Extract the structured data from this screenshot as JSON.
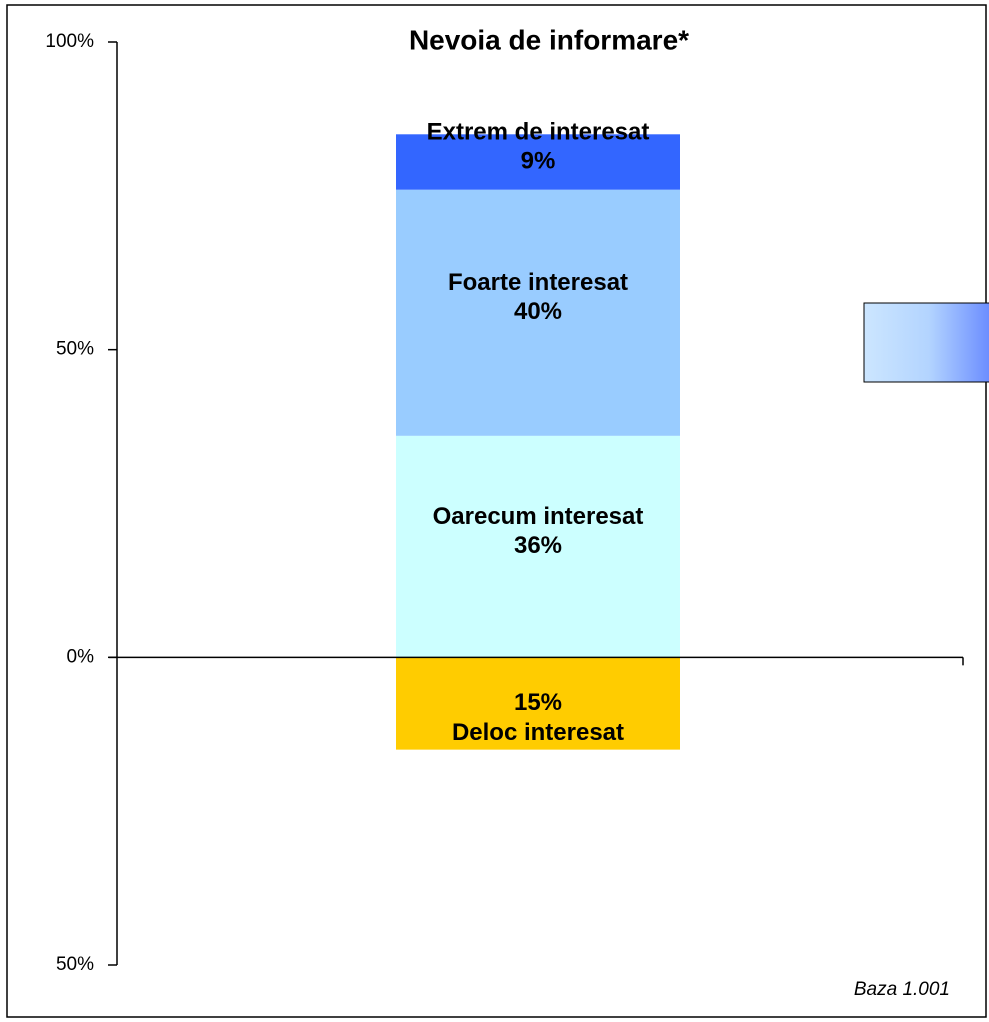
{
  "chart_data": {
    "type": "diverging_stacked_bar",
    "title": "Nevoia de informare*",
    "annotation": "Baza 1.001",
    "categories": [
      null
    ],
    "series": [
      {
        "name": "Deloc interesat",
        "color": "#ffcc00",
        "values": [
          -15
        ],
        "value_labels": [
          "15%"
        ]
      },
      {
        "name": "Oarecum interesat",
        "color": "#ccffff",
        "values": [
          36
        ],
        "value_labels": [
          "36%"
        ]
      },
      {
        "name": "Foarte interesat",
        "color": "#99ccff",
        "values": [
          40
        ],
        "value_labels": [
          "40%"
        ]
      },
      {
        "name": "Extrem de interesat",
        "color": "#3366ff",
        "values": [
          9
        ],
        "value_labels": [
          "9%"
        ]
      }
    ],
    "ylim": [
      -50,
      100
    ],
    "yticks": [
      {
        "value": 100,
        "label": "100%"
      },
      {
        "value": 50,
        "label": "50%"
      },
      {
        "value": 0,
        "label": "0%"
      },
      {
        "value": -50,
        "label": "50%"
      }
    ]
  }
}
